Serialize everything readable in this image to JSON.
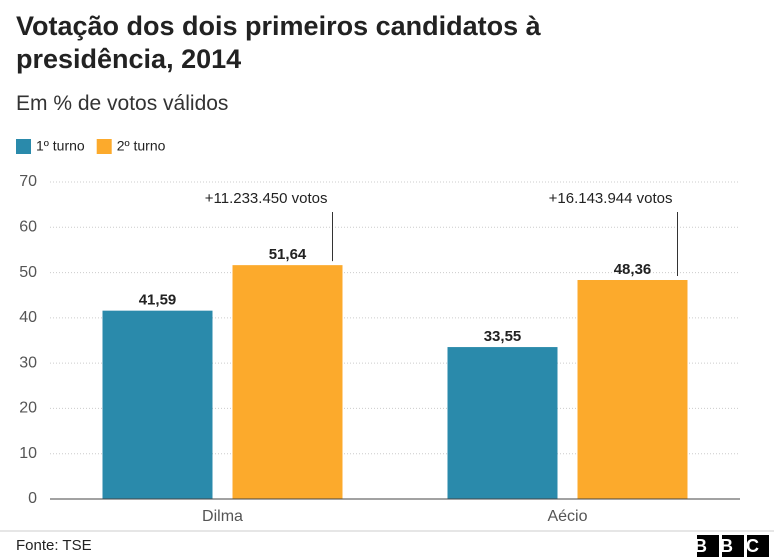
{
  "chart_data": {
    "type": "bar",
    "title": "Votação dos dois primeiros candidatos à presidência, 2014",
    "subtitle": "Em % de votos válidos",
    "categories": [
      "Dilma",
      "Aécio"
    ],
    "series": [
      {
        "name": "1º turno",
        "color": "#2a8aab",
        "values": [
          41.59,
          33.55
        ],
        "value_labels": [
          "41,59",
          "33,55"
        ]
      },
      {
        "name": "2º turno",
        "color": "#fcaa2c",
        "values": [
          51.64,
          48.36
        ],
        "value_labels": [
          "51,64",
          "48,36"
        ]
      }
    ],
    "annotations": [
      "+11.233.450 votos",
      "+16.143.944 votos"
    ],
    "ylim": [
      0,
      70
    ],
    "yticks": [
      0,
      10,
      20,
      30,
      40,
      50,
      60,
      70
    ],
    "grid": true,
    "legend": "top-left",
    "source": "Fonte: TSE",
    "logo": "BBC"
  }
}
